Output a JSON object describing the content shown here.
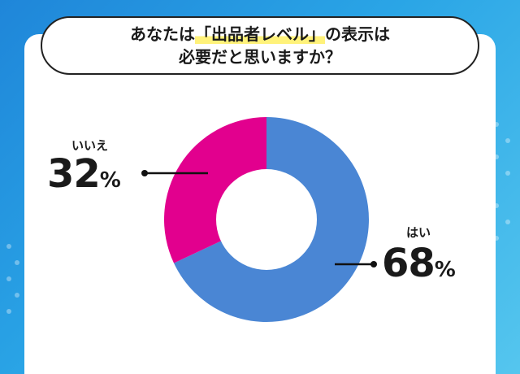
{
  "title": {
    "line1_pre": "あなたは",
    "line1_highlight": "「出品者レベル」",
    "line1_post": "の表示は",
    "line2": "必要だと思いますか？"
  },
  "chart_data": {
    "type": "pie",
    "style": "donut",
    "slices": [
      {
        "label": "はい",
        "value": 68,
        "display": "68",
        "unit": "%",
        "color": "#4a86d4"
      },
      {
        "label": "いいえ",
        "value": 32,
        "display": "32",
        "unit": "%",
        "color": "#e2008e"
      }
    ],
    "start_angle": "12 o'clock",
    "direction": "clockwise"
  },
  "colors": {
    "background": "#2aa5e6",
    "card": "#ffffff",
    "leader": "#111111"
  }
}
